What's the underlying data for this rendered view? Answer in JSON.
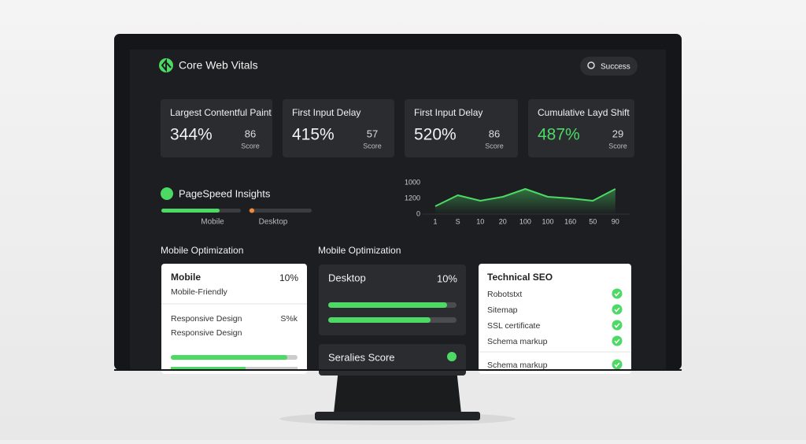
{
  "header": {
    "title": "Core Web Vitals",
    "button": "Success"
  },
  "metrics": [
    {
      "label": "Largest Contentful Paint",
      "value": "344%",
      "score": "86",
      "score_label": "Score"
    },
    {
      "label": "First Input Delay",
      "value": "415%",
      "score": "57",
      "score_label": "Score"
    },
    {
      "label": "First Input Delay",
      "value": "520%",
      "score": "86",
      "score_label": "Score"
    },
    {
      "label": "Cumulative Layd Shift",
      "value": "487%",
      "score": "29",
      "score_label": "Score"
    }
  ],
  "pagespeed": {
    "title": "PageSpeed Insights",
    "tabs": [
      "Mobile",
      "Desktop"
    ]
  },
  "chart_data": {
    "type": "line",
    "color": "#4cd964",
    "y_labels": [
      "1000",
      "1200",
      "0"
    ],
    "ylim": [
      0,
      1000
    ],
    "categories": [
      "1",
      "S",
      "10",
      "20",
      "100",
      "100",
      "160",
      "50",
      "90"
    ],
    "values": [
      250,
      600,
      425,
      550,
      800,
      550,
      500,
      425,
      800
    ]
  },
  "sections": [
    "Mobile Optimization",
    "Mobile Optimization"
  ],
  "mobile_card": {
    "title": "Mobile",
    "value": "10%",
    "subtitle": "Mobile-Friendly",
    "row_label": "Responsive Design",
    "row_value": "S%k",
    "row_label2": "Responsive Design"
  },
  "desktop_card": {
    "title": "Desktop",
    "value": "10%"
  },
  "score_card": {
    "title": "Seralies Score"
  },
  "seo_card": {
    "title": "Technical SEO",
    "items": [
      "Robotstxt",
      "Sitemap",
      "SSL certificate",
      "Schema markup",
      "Schema markup"
    ]
  }
}
